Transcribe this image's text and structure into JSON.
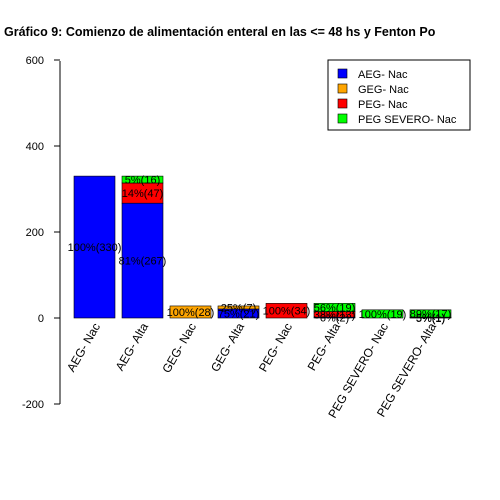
{
  "chart_data": {
    "type": "bar",
    "title": "Gráfico 9: Comienzo de alimentación enteral en las <= 48 hs y Fenton Po",
    "xlabel": "",
    "ylabel": "",
    "ylim": [
      -200,
      600
    ],
    "yticks": [
      "-200",
      "0",
      "200",
      "400",
      "600"
    ],
    "categories": [
      "AEG- Nac",
      "AEG- Alta",
      "GEG- Nac",
      "GEG- Alta",
      "PEG- Nac",
      "PEG- Alta",
      "PEG SEVERO- Nac",
      "PEG SEVERO- Alta"
    ],
    "legend": {
      "position": "top-right",
      "entries": [
        {
          "label": "AEG- Nac",
          "color": "#0000ff"
        },
        {
          "label": "GEG- Nac",
          "color": "#ffa500"
        },
        {
          "label": "PEG- Nac",
          "color": "#ff0000"
        },
        {
          "label": "PEG SEVERO- Nac",
          "color": "#00ff00"
        }
      ]
    },
    "bars": [
      {
        "category": "AEG- Nac",
        "segments": [
          {
            "color": "#0000ff",
            "value": 330,
            "label": "100%(330)"
          }
        ]
      },
      {
        "category": "AEG- Alta",
        "segments": [
          {
            "color": "#0000ff",
            "value": 267,
            "label": "81%(267)"
          },
          {
            "color": "#ff0000",
            "value": 47,
            "label": "14%(47)"
          },
          {
            "color": "#00ff00",
            "value": 16,
            "label": "5%(16)"
          }
        ]
      },
      {
        "category": "GEG- Nac",
        "segments": [
          {
            "color": "#ffa500",
            "value": 28,
            "label": "100%(28)"
          }
        ]
      },
      {
        "category": "GEG- Alta",
        "segments": [
          {
            "color": "#0000ff",
            "value": 21,
            "label": "75%(21)"
          },
          {
            "color": "#ffa500",
            "value": 7,
            "label": "25%(7)"
          }
        ]
      },
      {
        "category": "PEG- Nac",
        "segments": [
          {
            "color": "#ff0000",
            "value": 34,
            "label": "100%(34)"
          }
        ]
      },
      {
        "category": "PEG- Alta",
        "segments": [
          {
            "color": "#0000ff",
            "value": 2,
            "label": "6%(2)"
          },
          {
            "color": "#ff0000",
            "value": 13,
            "label": "38%(13)"
          },
          {
            "color": "#00ff00",
            "value": 19,
            "label": "56%(19)"
          }
        ]
      },
      {
        "category": "PEG SEVERO- Nac",
        "segments": [
          {
            "color": "#00ff00",
            "value": 19,
            "label": "100%(19)"
          }
        ]
      },
      {
        "category": "PEG SEVERO- Alta",
        "segments": [
          {
            "color": "#0000ff",
            "value": 1,
            "label": "5%(1)"
          },
          {
            "color": "#ff0000",
            "value": 1,
            "label": "5%(1)"
          },
          {
            "color": "#00ff00",
            "value": 17,
            "label": "89%(17)"
          }
        ]
      }
    ]
  }
}
